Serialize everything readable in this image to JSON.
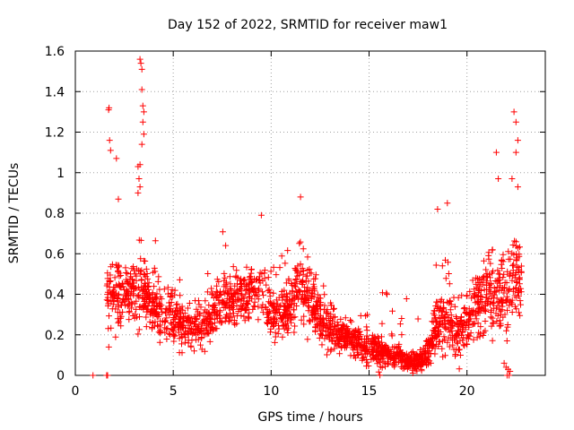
{
  "chart_data": {
    "type": "scatter",
    "title": "Day 152 of 2022, SRMTID for receiver maw1",
    "xlabel": "GPS time / hours",
    "ylabel": "SRMTID / TECUs",
    "xlim": [
      0,
      24
    ],
    "ylim": [
      0,
      1.6
    ],
    "xticks": [
      0,
      5,
      10,
      15,
      20
    ],
    "xtick_labels": [
      "0",
      "5",
      "10",
      "15",
      "20"
    ],
    "yticks": [
      0,
      0.2,
      0.4,
      0.6,
      0.8,
      1.0,
      1.2,
      1.4,
      1.6
    ],
    "ytick_labels": [
      "0",
      "0.2",
      "0.4",
      "0.6",
      "0.8",
      "1",
      "1.2",
      "1.4",
      "1.6"
    ],
    "grid": true,
    "marker": "plus",
    "color": "#ff0000",
    "profile": [
      [
        1.6,
        0.38,
        0.1
      ],
      [
        2.0,
        0.4,
        0.12
      ],
      [
        2.5,
        0.42,
        0.12
      ],
      [
        3.0,
        0.4,
        0.12
      ],
      [
        3.4,
        0.45,
        0.15
      ],
      [
        3.8,
        0.35,
        0.1
      ],
      [
        4.3,
        0.32,
        0.1
      ],
      [
        5.0,
        0.3,
        0.09
      ],
      [
        5.5,
        0.25,
        0.08
      ],
      [
        6.0,
        0.22,
        0.07
      ],
      [
        6.5,
        0.25,
        0.08
      ],
      [
        7.0,
        0.3,
        0.09
      ],
      [
        7.5,
        0.35,
        0.09
      ],
      [
        8.0,
        0.38,
        0.1
      ],
      [
        8.5,
        0.36,
        0.1
      ],
      [
        9.0,
        0.4,
        0.1
      ],
      [
        9.5,
        0.42,
        0.1
      ],
      [
        10.0,
        0.32,
        0.08
      ],
      [
        10.5,
        0.3,
        0.08
      ],
      [
        11.0,
        0.35,
        0.09
      ],
      [
        11.5,
        0.45,
        0.12
      ],
      [
        12.0,
        0.38,
        0.1
      ],
      [
        12.5,
        0.28,
        0.08
      ],
      [
        13.0,
        0.22,
        0.07
      ],
      [
        13.5,
        0.2,
        0.06
      ],
      [
        14.0,
        0.18,
        0.06
      ],
      [
        14.5,
        0.16,
        0.06
      ],
      [
        15.0,
        0.14,
        0.05
      ],
      [
        15.5,
        0.12,
        0.05
      ],
      [
        16.0,
        0.1,
        0.04
      ],
      [
        16.5,
        0.09,
        0.04
      ],
      [
        17.0,
        0.07,
        0.03
      ],
      [
        17.5,
        0.06,
        0.03
      ],
      [
        18.0,
        0.12,
        0.06
      ],
      [
        18.5,
        0.25,
        0.1
      ],
      [
        19.0,
        0.28,
        0.1
      ],
      [
        19.5,
        0.2,
        0.08
      ],
      [
        20.0,
        0.25,
        0.09
      ],
      [
        20.5,
        0.35,
        0.12
      ],
      [
        21.0,
        0.4,
        0.13
      ],
      [
        21.5,
        0.4,
        0.13
      ],
      [
        22.0,
        0.38,
        0.12
      ],
      [
        22.5,
        0.5,
        0.14
      ],
      [
        22.8,
        0.45,
        0.12
      ]
    ],
    "point_count": 2200,
    "outliers": [
      [
        0.9,
        0.0
      ],
      [
        1.6,
        0.0
      ],
      [
        1.65,
        0.0
      ],
      [
        1.7,
        1.31
      ],
      [
        1.72,
        1.32
      ],
      [
        1.75,
        1.16
      ],
      [
        1.8,
        1.11
      ],
      [
        2.1,
        1.07
      ],
      [
        2.2,
        0.87
      ],
      [
        3.3,
        1.56
      ],
      [
        3.35,
        1.54
      ],
      [
        3.4,
        1.51
      ],
      [
        3.4,
        1.41
      ],
      [
        3.45,
        1.33
      ],
      [
        3.5,
        1.3
      ],
      [
        3.45,
        1.25
      ],
      [
        3.5,
        1.19
      ],
      [
        3.4,
        1.14
      ],
      [
        3.3,
        1.04
      ],
      [
        3.2,
        1.03
      ],
      [
        3.25,
        0.97
      ],
      [
        3.3,
        0.93
      ],
      [
        3.2,
        0.9
      ],
      [
        9.5,
        0.79
      ],
      [
        11.5,
        0.88
      ],
      [
        18.5,
        0.82
      ],
      [
        19.0,
        0.85
      ],
      [
        21.5,
        1.1
      ],
      [
        21.6,
        0.97
      ],
      [
        22.4,
        1.3
      ],
      [
        22.5,
        1.25
      ],
      [
        22.6,
        1.16
      ],
      [
        22.5,
        1.1
      ],
      [
        22.3,
        0.97
      ],
      [
        22.6,
        0.93
      ],
      [
        21.9,
        0.06
      ],
      [
        22.0,
        0.04
      ],
      [
        22.1,
        0.03
      ],
      [
        22.2,
        0.02
      ],
      [
        22.15,
        0.0
      ],
      [
        22.05,
        0.0
      ]
    ],
    "seed": 152
  }
}
